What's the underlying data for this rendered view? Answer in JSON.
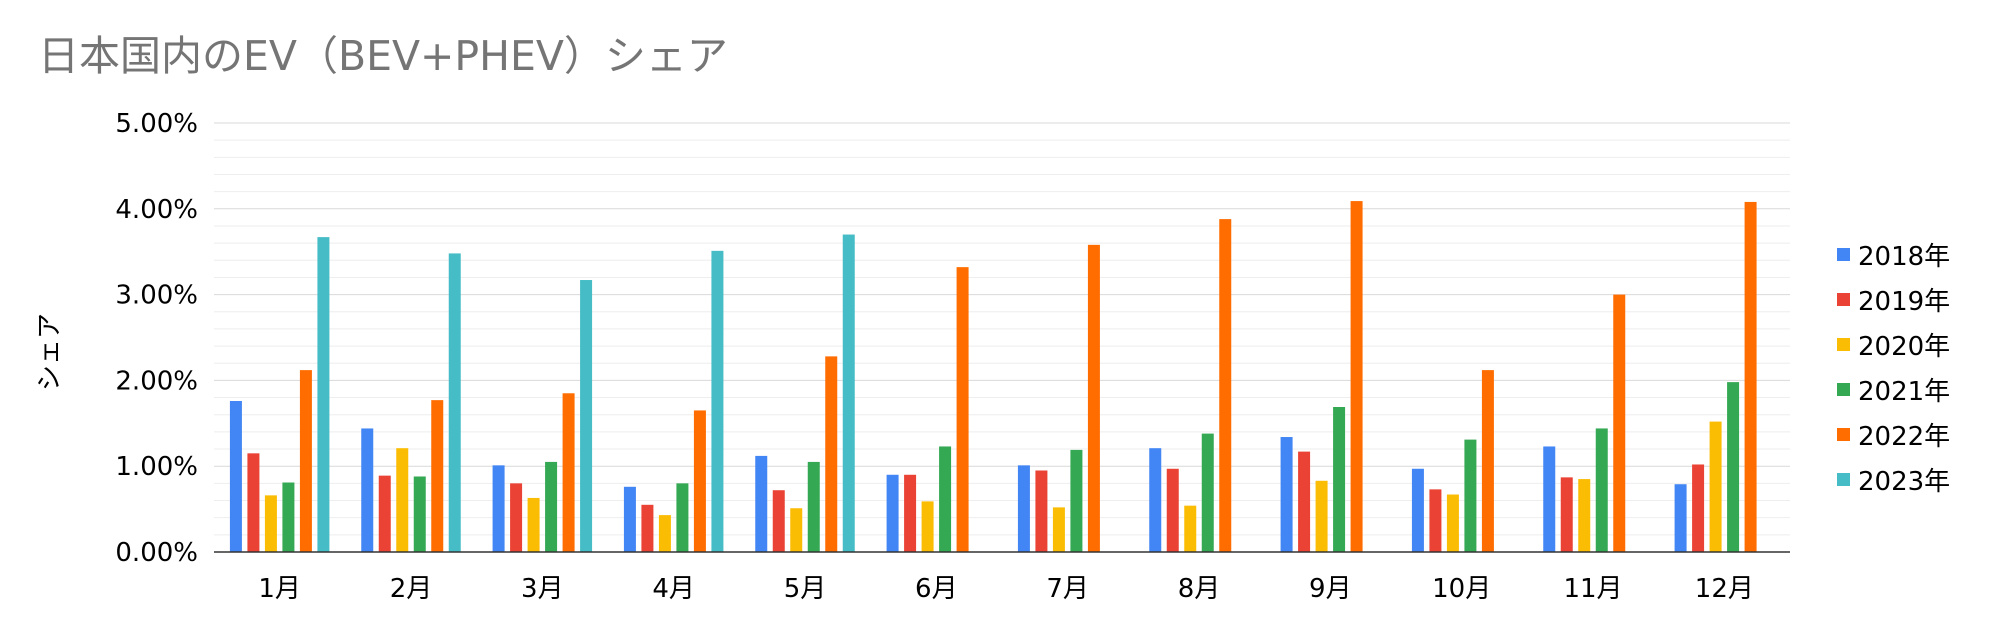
{
  "chart_data": {
    "type": "bar",
    "title": "日本国内のEV（BEV+PHEV）シェア",
    "xlabel": "",
    "ylabel": "シェア",
    "ylim": [
      0,
      0.05
    ],
    "y_ticks": [
      "0.00%",
      "1.00%",
      "2.00%",
      "3.00%",
      "4.00%",
      "5.00%"
    ],
    "grid": true,
    "legend_position": "right",
    "categories": [
      "1月",
      "2月",
      "3月",
      "4月",
      "5月",
      "6月",
      "7月",
      "8月",
      "9月",
      "10月",
      "11月",
      "12月"
    ],
    "series": [
      {
        "name": "2018年",
        "color": "#4285f4",
        "values": [
          0.0176,
          0.0144,
          0.0101,
          0.0076,
          0.0112,
          0.009,
          0.0101,
          0.0121,
          0.0134,
          0.0097,
          0.0123,
          0.0079
        ]
      },
      {
        "name": "2019年",
        "color": "#ea4335",
        "values": [
          0.0115,
          0.0089,
          0.008,
          0.0055,
          0.0072,
          0.009,
          0.0095,
          0.0097,
          0.0117,
          0.0073,
          0.0087,
          0.0102
        ]
      },
      {
        "name": "2020年",
        "color": "#fbbc04",
        "values": [
          0.0066,
          0.0121,
          0.0063,
          0.0043,
          0.0051,
          0.0059,
          0.0052,
          0.0054,
          0.0083,
          0.0067,
          0.0085,
          0.0152
        ]
      },
      {
        "name": "2021年",
        "color": "#34a853",
        "values": [
          0.0081,
          0.0088,
          0.0105,
          0.008,
          0.0105,
          0.0123,
          0.0119,
          0.0138,
          0.0169,
          0.0131,
          0.0144,
          0.0198
        ]
      },
      {
        "name": "2022年",
        "color": "#ff6d01",
        "values": [
          0.0212,
          0.0177,
          0.0185,
          0.0165,
          0.0228,
          0.0332,
          0.0358,
          0.0388,
          0.0409,
          0.0212,
          0.03,
          0.0408
        ]
      },
      {
        "name": "2023年",
        "color": "#46bdc6",
        "values": [
          0.0367,
          0.0348,
          0.0317,
          0.0351,
          0.037,
          null,
          null,
          null,
          null,
          null,
          null,
          null
        ]
      }
    ]
  }
}
